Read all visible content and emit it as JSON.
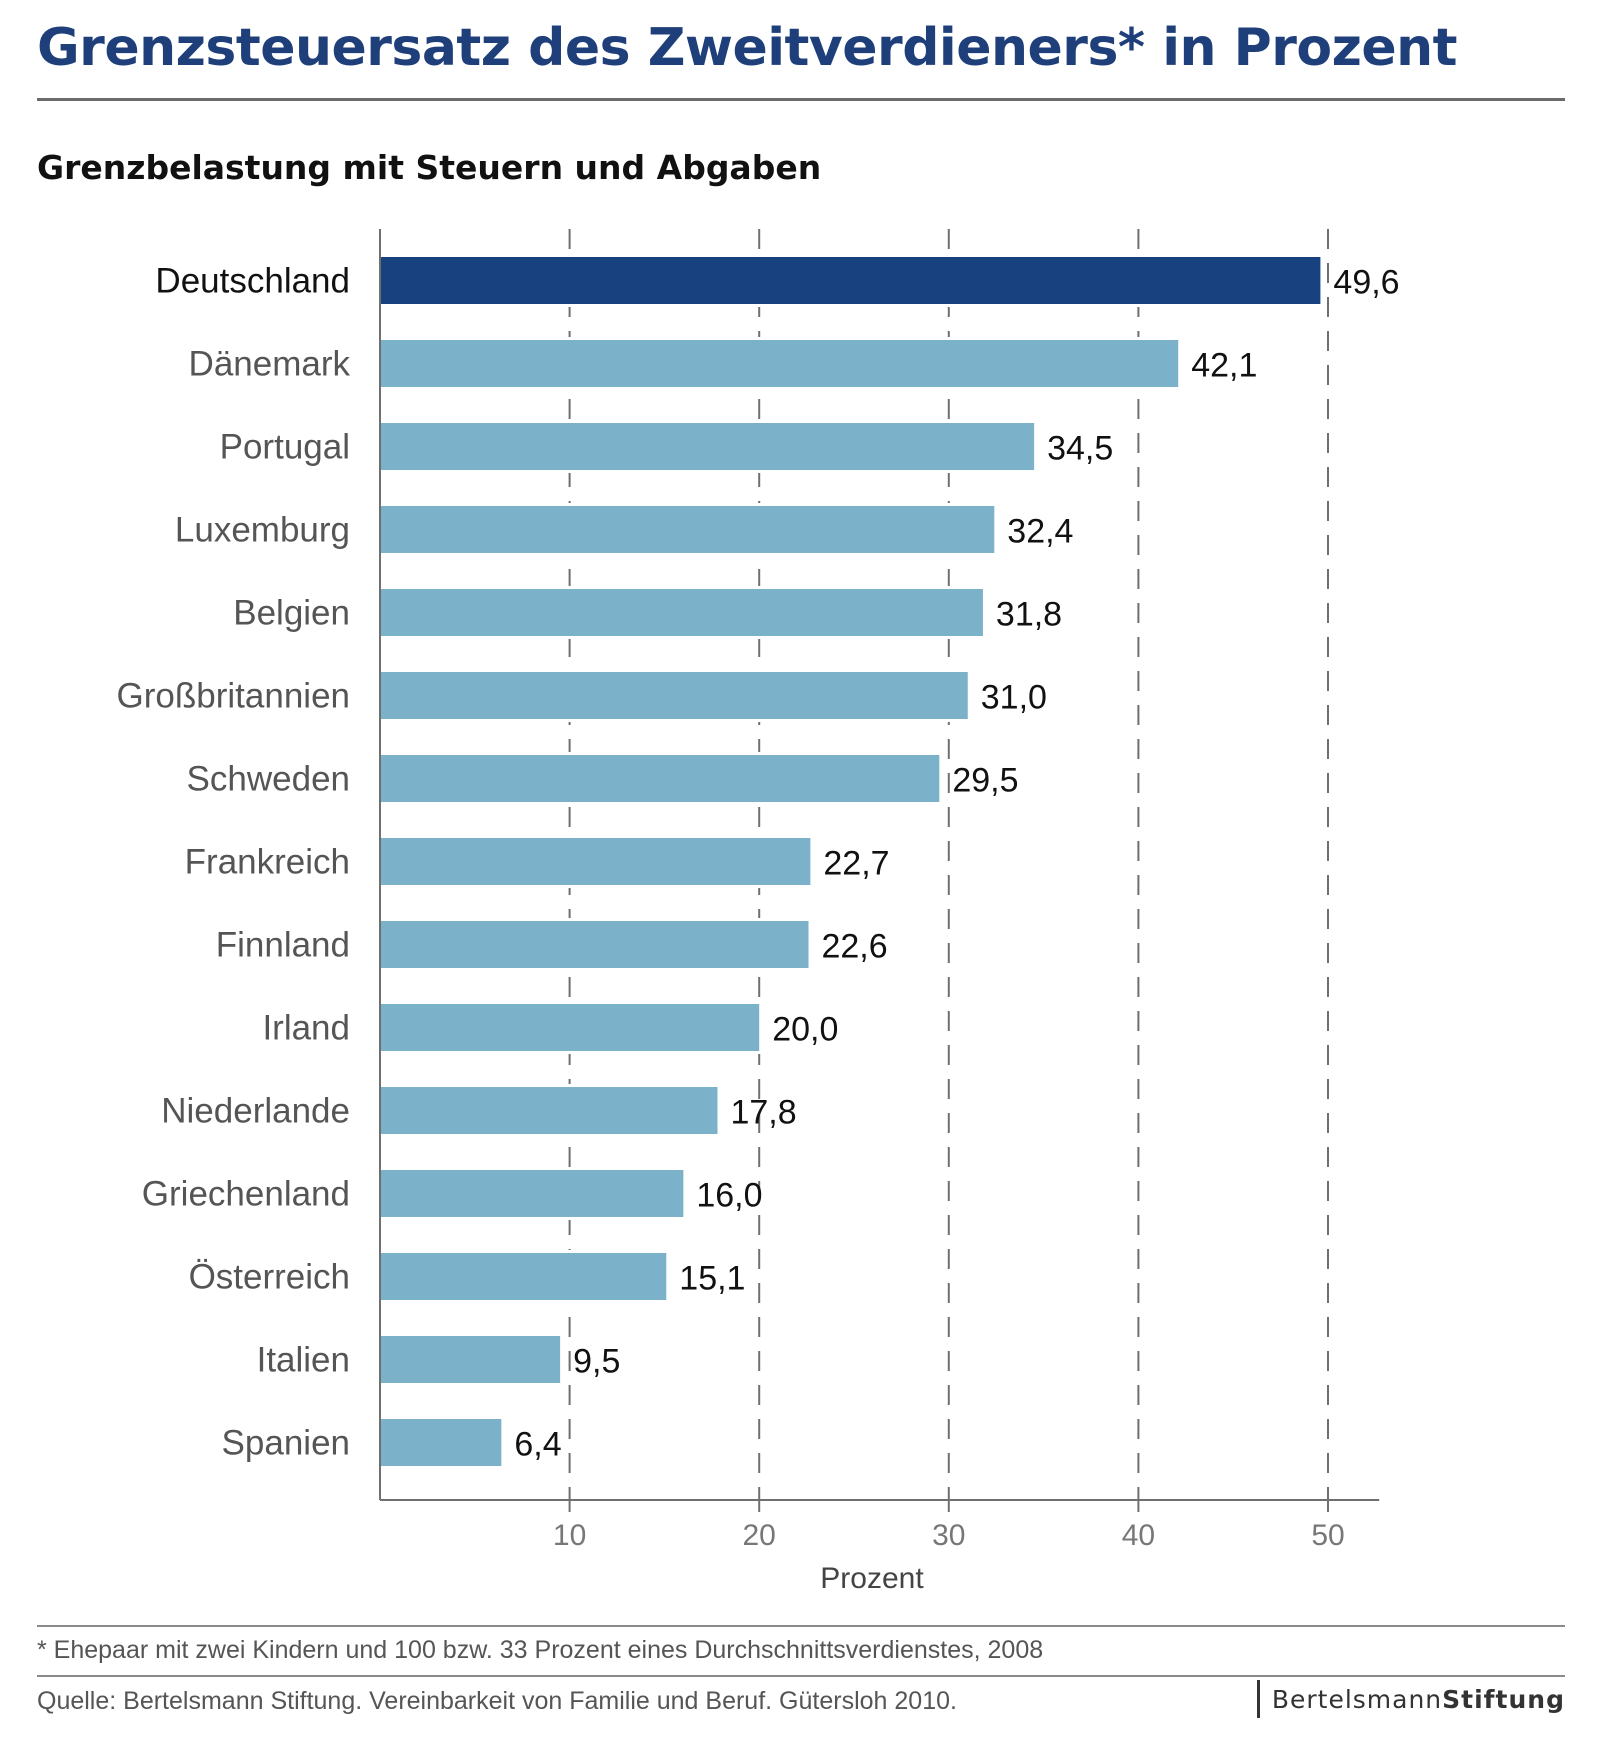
{
  "title": "Grenzsteuersatz des Zweitverdieners* in Prozent",
  "subtitle": "Grenzbelastung mit Steuern und Abgaben",
  "footnote": "* Ehepaar mit zwei Kindern und 100 bzw. 33 Prozent eines Durchschnittsverdienstes, 2008",
  "source": "Quelle: Bertelsmann Stiftung. Vereinbarkeit von Familie und Beruf. Gütersloh 2010.",
  "logo": {
    "part1": "Bertelsmann",
    "part2": "Stiftung"
  },
  "colors": {
    "title": "#1f3f7a",
    "highlight_bar": "#17417f",
    "bar": "#7bb2c9"
  },
  "chart_data": {
    "type": "bar",
    "orientation": "horizontal",
    "categories": [
      "Deutschland",
      "Dänemark",
      "Portugal",
      "Luxemburg",
      "Belgien",
      "Großbritannien",
      "Schweden",
      "Frankreich",
      "Finnland",
      "Irland",
      "Niederlande",
      "Griechenland",
      "Österreich",
      "Italien",
      "Spanien"
    ],
    "values": [
      49.6,
      42.1,
      34.5,
      32.4,
      31.8,
      31.0,
      29.5,
      22.7,
      22.6,
      20.0,
      17.8,
      16.0,
      15.1,
      9.5,
      6.4
    ],
    "value_labels": [
      "49,6",
      "42,1",
      "34,5",
      "32,4",
      "31,8",
      "31,0",
      "29,5",
      "22,7",
      "22,6",
      "20,0",
      "17,8",
      "16,0",
      "15,1",
      "9,5",
      "6,4"
    ],
    "highlight": "Deutschland",
    "xlabel": "Prozent",
    "xticks": [
      10,
      20,
      30,
      40,
      50
    ],
    "xlim": [
      0,
      52.7
    ],
    "grid": "dashed vertical"
  }
}
